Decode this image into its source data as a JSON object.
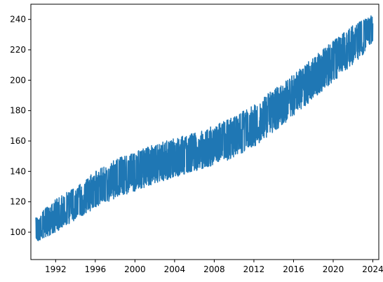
{
  "chart_data": {
    "type": "line",
    "title": "",
    "xlabel": "",
    "ylabel": "",
    "xlim": [
      1989.5,
      2024.6
    ],
    "ylim": [
      82,
      250
    ],
    "x_ticks": [
      1992,
      1996,
      2000,
      2004,
      2008,
      2012,
      2016,
      2020,
      2024
    ],
    "y_ticks": [
      100,
      120,
      140,
      160,
      180,
      200,
      220,
      240
    ],
    "grid": false,
    "legend": "none",
    "colors": {
      "series": "#1f77b4",
      "axes": "#000000",
      "background": "#ffffff"
    },
    "series": [
      {
        "trend_x": [
          1990.0,
          1992.0,
          1994.0,
          1996.0,
          1998.0,
          2000.0,
          2002.0,
          2004.0,
          2006.0,
          2008.0,
          2010.0,
          2012.0,
          2014.0,
          2016.0,
          2018.0,
          2020.0,
          2022.0,
          2024.0
        ],
        "trend_y": [
          103,
          112,
          120,
          128,
          134,
          139,
          144,
          148,
          152,
          156,
          162,
          170,
          179,
          189,
          201,
          212,
          223,
          232
        ],
        "upper_band": [
          110,
          122,
          130,
          140,
          148,
          153,
          158,
          162,
          166,
          170,
          176,
          184,
          194,
          204,
          215,
          226,
          236,
          243
        ],
        "lower_band": [
          93,
          100,
          108,
          116,
          122,
          127,
          132,
          136,
          140,
          144,
          149,
          156,
          166,
          176,
          188,
          199,
          210,
          224
        ],
        "resolution": "monthly",
        "x_start": 1990.0,
        "x_end": 2024.0
      }
    ]
  }
}
